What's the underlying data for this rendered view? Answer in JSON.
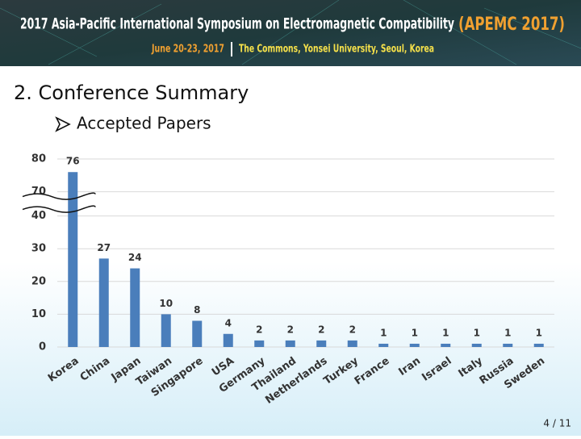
{
  "header": {
    "title": "2017 Asia-Pacific International Symposium on Electromagnetic Compatibility",
    "acronym": "(APEMC 2017)",
    "date": "June 20-23, 2017",
    "venue": "The Commons, Yonsei University, Seoul, Korea"
  },
  "slide_title": "2. Conference Summary",
  "bullet": "Accepted Papers",
  "page_number": "4 / 11",
  "chart_data": {
    "type": "bar",
    "categories": [
      "Korea",
      "China",
      "Japan",
      "Taiwan",
      "Singapore",
      "USA",
      "Germany",
      "Thailand",
      "Netherlands",
      "Turkey",
      "France",
      "Iran",
      "Israel",
      "Italy",
      "Russia",
      "Sweden"
    ],
    "values": [
      76,
      27,
      24,
      10,
      8,
      4,
      2,
      2,
      2,
      2,
      1,
      1,
      1,
      1,
      1,
      1
    ],
    "color": "#4a7ebb",
    "ylim": [
      0,
      80
    ],
    "yticks": [
      0,
      10,
      20,
      30,
      40,
      70,
      80
    ],
    "axis_break": [
      40,
      70
    ],
    "grid": true
  }
}
